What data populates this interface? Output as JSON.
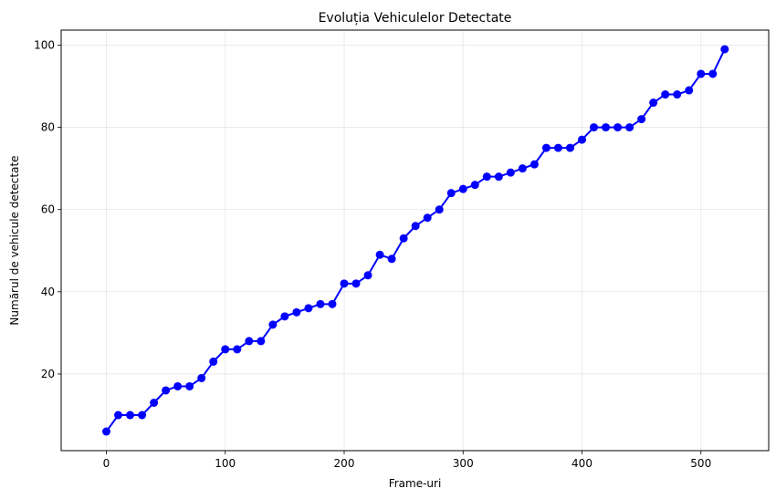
{
  "chart_data": {
    "type": "line",
    "title": "Evoluția Vehiculelor Detectate",
    "xlabel": "Frame-uri",
    "ylabel": "Numărul de vehicule detectate",
    "xlim": [
      -38,
      557
    ],
    "ylim": [
      1.35,
      103.65
    ],
    "xticks": [
      0,
      100,
      200,
      300,
      400,
      500
    ],
    "yticks": [
      20,
      40,
      60,
      80,
      100
    ],
    "grid": true,
    "legend": "none",
    "series": [
      {
        "color": "#0000ff",
        "marker": "circle",
        "x": [
          0,
          10,
          20,
          30,
          40,
          50,
          60,
          70,
          80,
          90,
          100,
          110,
          120,
          130,
          140,
          150,
          160,
          170,
          180,
          190,
          200,
          210,
          220,
          230,
          240,
          250,
          260,
          270,
          280,
          290,
          300,
          310,
          320,
          330,
          340,
          350,
          360,
          370,
          380,
          390,
          400,
          410,
          420,
          430,
          440,
          450,
          460,
          470,
          480,
          490,
          500,
          510,
          520
        ],
        "y": [
          6,
          10,
          10,
          10,
          13,
          16,
          17,
          17,
          19,
          23,
          26,
          26,
          28,
          28,
          32,
          34,
          35,
          36,
          37,
          37,
          42,
          42,
          44,
          49,
          48,
          53,
          56,
          58,
          60,
          64,
          65,
          66,
          68,
          68,
          69,
          70,
          71,
          75,
          75,
          75,
          77,
          80,
          80,
          80,
          80,
          82,
          86,
          88,
          88,
          89,
          93,
          93,
          99
        ]
      }
    ]
  }
}
